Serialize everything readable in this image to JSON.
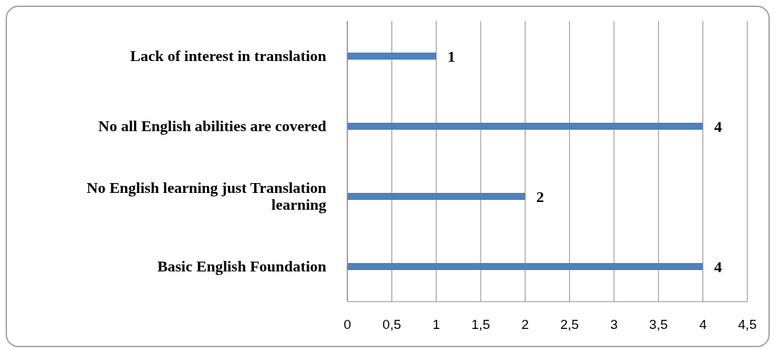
{
  "chart_data": {
    "type": "bar",
    "orientation": "horizontal",
    "categories": [
      "Lack of interest in translation",
      "No all English abilities are covered",
      "No English learning just Translation learning",
      "Basic English Foundation"
    ],
    "values": [
      1,
      4,
      2,
      4
    ],
    "color": "#4f81bd",
    "data_labels": true,
    "xlim": [
      0,
      4.5
    ],
    "xticks": [
      0,
      {
        "value": 0.5,
        "label": "0,5"
      },
      1,
      {
        "value": 1.5,
        "label": "1,5"
      },
      2,
      {
        "value": 2.5,
        "label": "2,5"
      },
      3,
      {
        "value": 3.5,
        "label": "3,5"
      },
      4,
      {
        "value": 4.5,
        "label": "4,5"
      }
    ],
    "grid": "x",
    "legend": false
  }
}
